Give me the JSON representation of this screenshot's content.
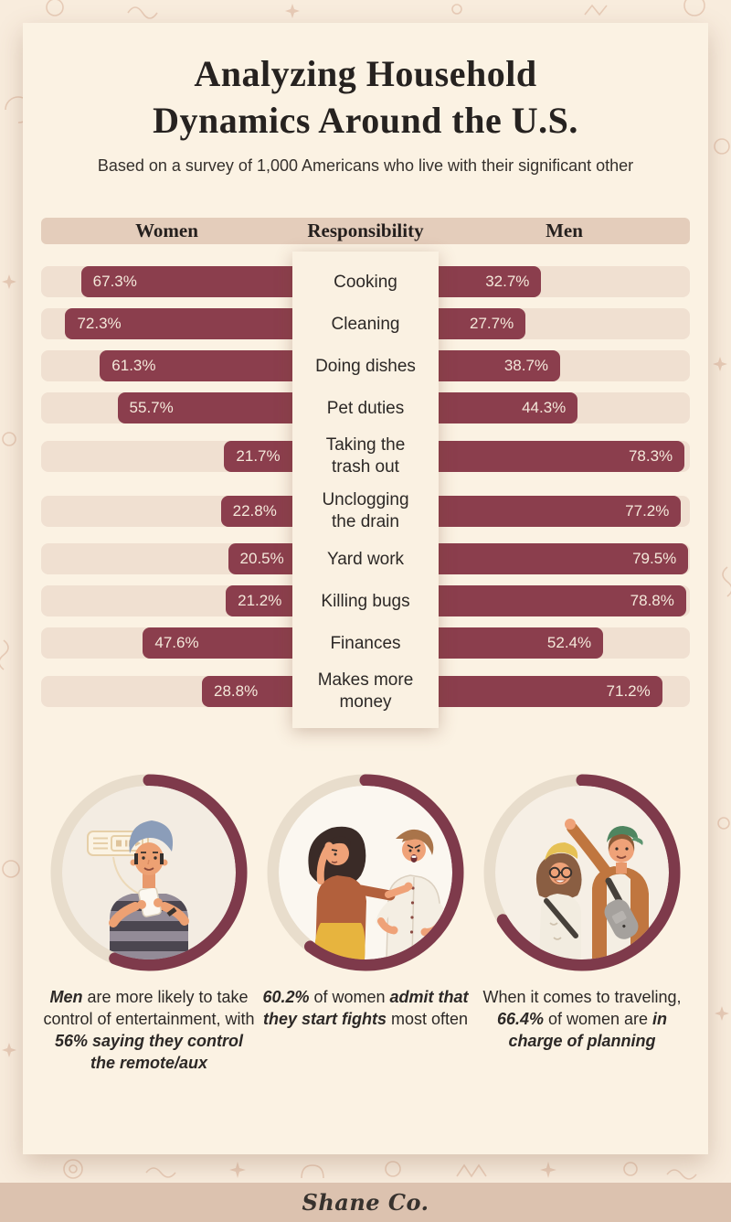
{
  "header": {
    "title_line1": "Analyzing Household",
    "title_line2": "Dynamics Around the U.S.",
    "subtitle": "Based on a survey of 1,000 Americans who live with their significant other"
  },
  "table": {
    "columns": {
      "women": "Women",
      "responsibility": "Responsibility",
      "men": "Men"
    }
  },
  "chart_data": {
    "type": "bar",
    "subtype": "diverging-butterfly",
    "categories": [
      "Cooking",
      "Cleaning",
      "Doing dishes",
      "Pet duties",
      "Taking the trash out",
      "Unclogging the drain",
      "Yard work",
      "Killing bugs",
      "Finances",
      "Makes more money"
    ],
    "series": [
      {
        "name": "Women",
        "values": [
          67.3,
          72.3,
          61.3,
          55.7,
          21.7,
          22.8,
          20.5,
          21.2,
          47.6,
          28.8
        ]
      },
      {
        "name": "Men",
        "values": [
          32.7,
          27.7,
          38.7,
          44.3,
          78.3,
          77.2,
          79.5,
          78.8,
          52.4,
          71.2
        ]
      }
    ],
    "unit": "%",
    "bar_scale_max": 80,
    "title": "Analyzing Household Dynamics Around the U.S.",
    "xlabel": "",
    "ylabel": "Responsibility",
    "legend_position": "header-band",
    "grid": false
  },
  "stats": [
    {
      "ring_pct": 56,
      "illustration": "man-with-remote",
      "caption": [
        {
          "t": "Men",
          "em": true
        },
        {
          "t": " are more likely to take control of entertainment, with ",
          "em": false
        },
        {
          "t": "56% saying they control the remote/aux",
          "em": true
        }
      ]
    },
    {
      "ring_pct": 60.2,
      "illustration": "arguing-couple",
      "caption": [
        {
          "t": "60.2%",
          "em": true
        },
        {
          "t": " of women ",
          "em": false
        },
        {
          "t": "admit that they start fights",
          "em": true
        },
        {
          "t": " most often",
          "em": false
        }
      ]
    },
    {
      "ring_pct": 66.4,
      "illustration": "traveling-couple",
      "caption": [
        {
          "t": "When it comes to traveling, ",
          "em": false
        },
        {
          "t": "66.4%",
          "em": true
        },
        {
          "t": " of women are ",
          "em": false
        },
        {
          "t": "in charge of planning",
          "em": true
        }
      ]
    }
  ],
  "footer": {
    "brand": "Shane Co."
  },
  "colors": {
    "bar": "#8b3e4d",
    "track": "#f0e0d1",
    "band": "#e4cdbb",
    "card": "#fbf2e3",
    "background": "#f8ecdd",
    "ring": "#7e3a4b",
    "ring_rest": "#e8ddcc",
    "footer": "#dcc2af",
    "text_dark": "#262220",
    "bar_text": "#f4e8da"
  }
}
